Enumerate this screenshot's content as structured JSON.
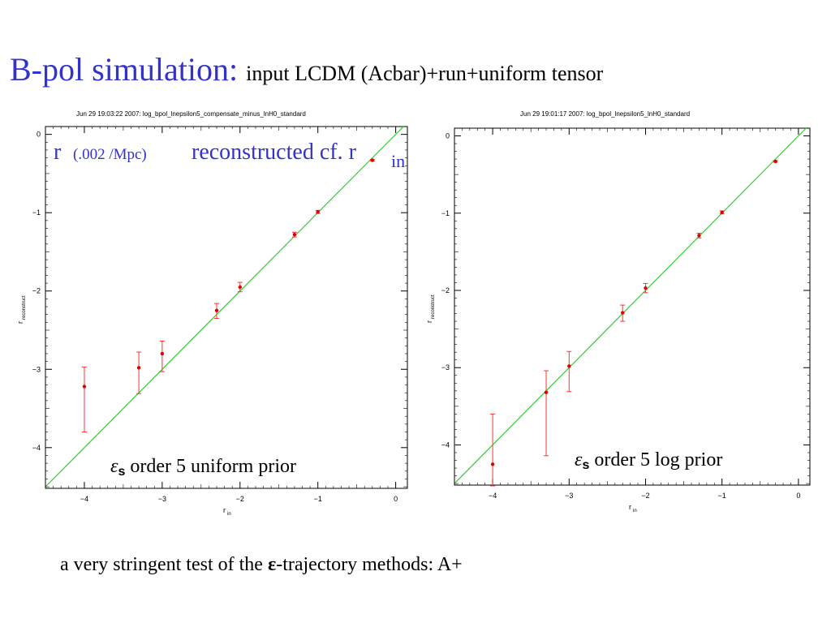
{
  "slide": {
    "title_main": "B-pol simulation",
    "title_colon": ":",
    "title_sub": "input LCDM (Acbar)+run+uniform tensor",
    "overlay_r": "r",
    "overlay_scale": "(.002 /Mpc)",
    "overlay_rest": "reconstructed cf. r",
    "overlay_sub": "in",
    "caption_pre": "a very stringent test of the ",
    "caption_eps": "ε",
    "caption_post": "-trajectory methods: A+",
    "colors": {
      "title": "#3333cc",
      "diagonal": "#33cc33",
      "points": "#dd0000",
      "errorbars": "#ff3333"
    }
  },
  "chart_data": [
    {
      "type": "scatter",
      "header": "Jun 29 19:03:22 2007: log_bpol_lnepsilon5_compensate_minus_lnH0_standard",
      "xlabel": "r",
      "xlabel_sub": "in",
      "ylabel": "r",
      "ylabel_sub": "reconstruct",
      "xlim": [
        -4.5,
        0.15
      ],
      "ylim": [
        -4.52,
        0.1
      ],
      "xticks": [
        "-4",
        "-3",
        "-2",
        "-1",
        "0"
      ],
      "yticks": [
        "0",
        "-1",
        "-2",
        "-3",
        "-4"
      ],
      "label_eps": "ε",
      "label_s": "s",
      "label_text": "order 5 uniform prior",
      "series": [
        {
          "x": [
            -4.0,
            -3.3,
            -3.0,
            -2.3,
            -2.0,
            -1.3,
            -1.0,
            -0.3
          ],
          "y": [
            -3.22,
            -2.98,
            -2.8,
            -2.25,
            -1.95,
            -1.28,
            -0.99,
            -0.33
          ],
          "err_low": [
            0.58,
            0.33,
            0.23,
            0.1,
            0.06,
            0.03,
            0.02,
            0.01
          ],
          "err_high": [
            0.25,
            0.2,
            0.16,
            0.09,
            0.06,
            0.03,
            0.02,
            0.01
          ]
        }
      ],
      "diagonal": true
    },
    {
      "type": "scatter",
      "header": "Jun 29 19:01:17 2007: log_bpol_lnepsilon5_lnH0_standard",
      "xlabel": "r",
      "xlabel_sub": "in",
      "ylabel": "r",
      "ylabel_sub": "reconstruct",
      "xlim": [
        -4.5,
        0.15
      ],
      "ylim": [
        -4.52,
        0.1
      ],
      "xticks": [
        "-4",
        "-3",
        "-2",
        "-1",
        "0"
      ],
      "yticks": [
        "0",
        "-1",
        "-2",
        "-3",
        "-4"
      ],
      "label_eps": "ε",
      "label_s": "s",
      "label_text": "order 5 log prior",
      "series": [
        {
          "x": [
            -4.0,
            -3.3,
            -3.0,
            -2.3,
            -2.0,
            -1.3,
            -1.0,
            -0.3
          ],
          "y": [
            -4.25,
            -3.32,
            -2.98,
            -2.29,
            -1.97,
            -1.29,
            -0.99,
            -0.33
          ],
          "err_low": [
            0.28,
            0.82,
            0.33,
            0.11,
            0.06,
            0.03,
            0.02,
            0.01
          ],
          "err_high": [
            0.65,
            0.28,
            0.19,
            0.1,
            0.06,
            0.03,
            0.02,
            0.01
          ]
        }
      ],
      "diagonal": true
    }
  ]
}
